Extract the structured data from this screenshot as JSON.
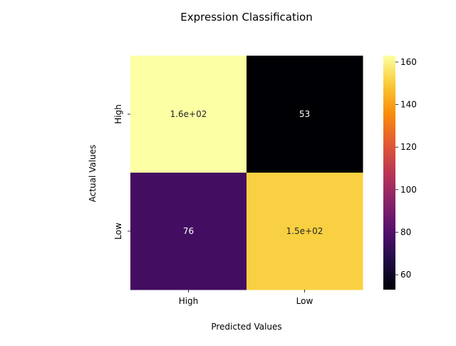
{
  "chart_data": {
    "type": "heatmap",
    "title": "Expression Classification",
    "xlabel": "Predicted Values",
    "ylabel": "Actual Values",
    "x_categories": [
      "High",
      "Low"
    ],
    "y_categories": [
      "High",
      "Low"
    ],
    "values": [
      [
        163,
        53
      ],
      [
        76,
        151
      ]
    ],
    "cell_labels": [
      [
        "1.6e+02",
        "53"
      ],
      [
        "76",
        "1.5e+02"
      ]
    ],
    "colormap": "inferno",
    "colorbar": {
      "range": [
        53,
        163
      ],
      "ticks": [
        60,
        80,
        100,
        120,
        140,
        160
      ],
      "tick_labels": [
        "60",
        "80",
        "100",
        "120",
        "140",
        "160"
      ]
    },
    "grid": false
  }
}
